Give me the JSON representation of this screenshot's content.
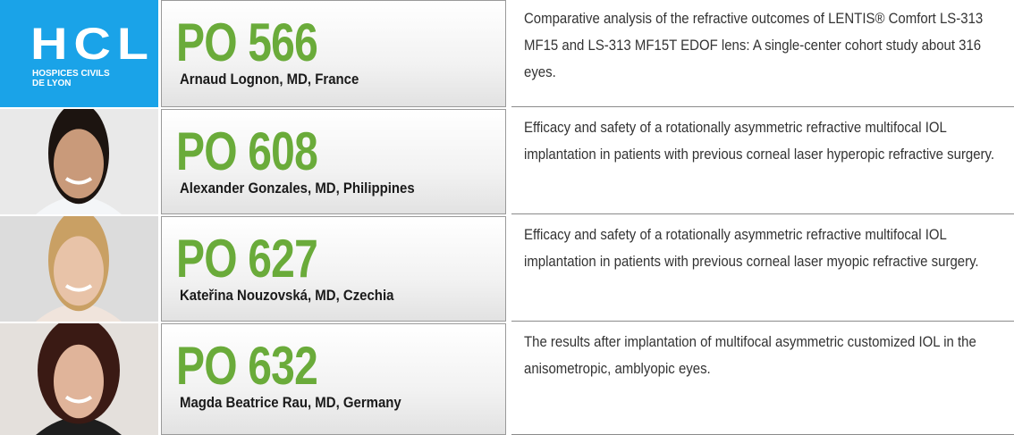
{
  "entries": [
    {
      "logo": {
        "name": "HCL",
        "subtitle": [
          "HOSPICES CIVILS",
          "DE LYON"
        ]
      },
      "code": "PO 566",
      "author": "Arnaud Lognon, MD, France",
      "description": "Comparative analysis of the refractive outcomes of LENTIS® Comfort LS-313 MF15 and LS-313 MF15T EDOF lens: A single-center cohort study about 316 eyes."
    },
    {
      "code": "PO 608",
      "author": "Alexander Gonzales, MD, Philippines",
      "description": "Efficacy and safety of a rotationally asymmetric refractive multifocal IOL implantation in patients with previous corneal laser hyperopic refractive surgery."
    },
    {
      "code": "PO 627",
      "author": "Kateřina Nouzovská, MD, Czechia",
      "description": "Efficacy and safety of a rotationally asymmetric refractive multifocal IOL implantation in patients with previous corneal laser myopic refractive surgery."
    },
    {
      "code": "PO 632",
      "author": "Magda Beatrice Rau, MD, Germany",
      "description": "The results after implantation of multifocal asymmetric customized IOL in the anisometropic, amblyopic eyes."
    }
  ]
}
